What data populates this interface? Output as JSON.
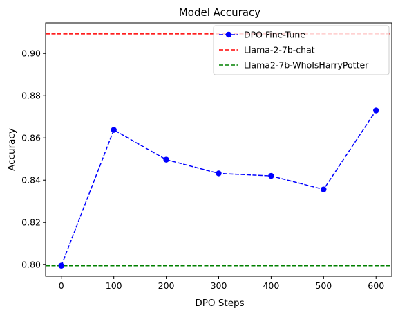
{
  "chart_data": {
    "type": "line",
    "title": "Model Accuracy",
    "xlabel": "DPO Steps",
    "ylabel": "Accuracy",
    "xlim": [
      -30,
      630
    ],
    "ylim": [
      0.7945,
      0.9145
    ],
    "xticks": [
      0,
      100,
      200,
      300,
      400,
      500,
      600
    ],
    "yticks": [
      0.8,
      0.82,
      0.84,
      0.86,
      0.88,
      0.9
    ],
    "ytick_labels": [
      "0.80",
      "0.82",
      "0.84",
      "0.86",
      "0.88",
      "0.90"
    ],
    "grid": false,
    "legend_position": "top-right",
    "series": [
      {
        "name": "DPO Fine-Tune",
        "x": [
          0,
          100,
          200,
          300,
          400,
          500,
          600
        ],
        "y": [
          0.7995,
          0.8638,
          0.8497,
          0.8432,
          0.842,
          0.8356,
          0.873
        ],
        "color": "#0000ff",
        "style": "dashed-marker"
      }
    ],
    "hlines": [
      {
        "name": "Llama-2-7b-chat",
        "y": 0.9093,
        "color": "#ff0000",
        "style": "dashed"
      },
      {
        "name": "Llama2-7b-WhoIsHarryPotter",
        "y": 0.7995,
        "color": "#008000",
        "style": "dashed"
      }
    ]
  }
}
